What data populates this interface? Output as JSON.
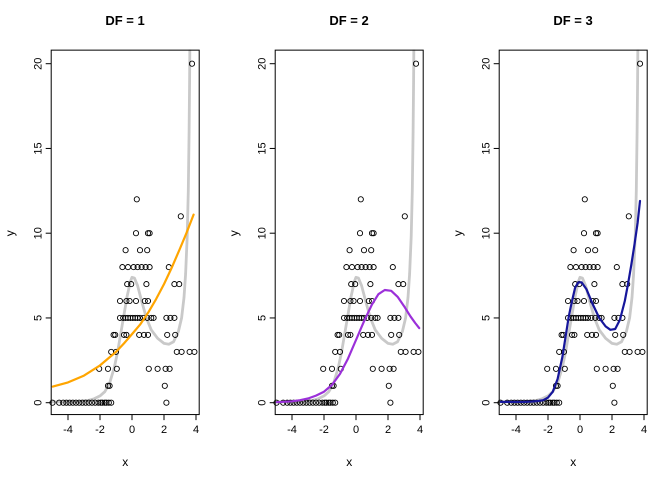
{
  "figure": {
    "background": "#ffffff",
    "panels": [
      {
        "title": "DF = 1"
      },
      {
        "title": "DF = 2"
      },
      {
        "title": "DF = 3"
      }
    ]
  },
  "chart_data": {
    "type": "scatter",
    "title": "",
    "xlabel": "x",
    "ylabel": "y",
    "xlim": [
      -5.05,
      4.2
    ],
    "ylim": [
      -0.7,
      20.8
    ],
    "x_ticks": [
      -4,
      -2,
      0,
      2,
      4
    ],
    "y_ticks": [
      0,
      5,
      10,
      15,
      20
    ],
    "grid": false,
    "point_color": "#000000",
    "true_curve_color": "#C9C9C9",
    "points": [
      [
        -4.97,
        0
      ],
      [
        -4.55,
        0
      ],
      [
        -4.3,
        0
      ],
      [
        -4.1,
        0
      ],
      [
        -3.9,
        0
      ],
      [
        -3.7,
        0
      ],
      [
        -3.5,
        0
      ],
      [
        -3.3,
        0
      ],
      [
        -3.1,
        0
      ],
      [
        -2.9,
        0
      ],
      [
        -2.7,
        0
      ],
      [
        -2.5,
        0
      ],
      [
        -2.3,
        0
      ],
      [
        -2.1,
        0
      ],
      [
        -1.95,
        0
      ],
      [
        -1.85,
        0
      ],
      [
        -1.7,
        0
      ],
      [
        -1.6,
        0
      ],
      [
        -1.45,
        0
      ],
      [
        -1.3,
        0
      ],
      [
        2.15,
        0
      ],
      [
        -1.5,
        1
      ],
      [
        -1.4,
        1
      ],
      [
        2.05,
        1
      ],
      [
        -2.05,
        2
      ],
      [
        -1.5,
        2
      ],
      [
        -0.95,
        2
      ],
      [
        1.05,
        2
      ],
      [
        1.6,
        2
      ],
      [
        2.1,
        2
      ],
      [
        2.35,
        2
      ],
      [
        -1.3,
        3
      ],
      [
        -1.0,
        3
      ],
      [
        2.8,
        3
      ],
      [
        3.1,
        3
      ],
      [
        3.6,
        3
      ],
      [
        3.9,
        3
      ],
      [
        -1.15,
        4
      ],
      [
        -1.05,
        4
      ],
      [
        -0.5,
        4
      ],
      [
        -0.35,
        4
      ],
      [
        0.45,
        4
      ],
      [
        0.75,
        4
      ],
      [
        1.0,
        4
      ],
      [
        2.2,
        4
      ],
      [
        2.7,
        4
      ],
      [
        -0.75,
        5
      ],
      [
        -0.55,
        5
      ],
      [
        -0.4,
        5
      ],
      [
        -0.25,
        5
      ],
      [
        -0.1,
        5
      ],
      [
        0.05,
        5
      ],
      [
        0.2,
        5
      ],
      [
        0.35,
        5
      ],
      [
        0.5,
        5
      ],
      [
        0.7,
        5
      ],
      [
        0.95,
        5
      ],
      [
        1.2,
        5
      ],
      [
        1.35,
        5
      ],
      [
        2.15,
        5
      ],
      [
        2.4,
        5
      ],
      [
        2.65,
        5
      ],
      [
        -0.75,
        6
      ],
      [
        -0.35,
        6
      ],
      [
        -0.15,
        6
      ],
      [
        0.25,
        6
      ],
      [
        0.8,
        6
      ],
      [
        1.0,
        6
      ],
      [
        -0.3,
        7
      ],
      [
        -0.05,
        7
      ],
      [
        0.9,
        7
      ],
      [
        2.65,
        7
      ],
      [
        2.95,
        7
      ],
      [
        -0.6,
        8
      ],
      [
        -0.25,
        8
      ],
      [
        0.1,
        8
      ],
      [
        0.35,
        8
      ],
      [
        0.6,
        8
      ],
      [
        0.85,
        8
      ],
      [
        1.1,
        8
      ],
      [
        2.3,
        8
      ],
      [
        -0.4,
        9
      ],
      [
        0.5,
        9
      ],
      [
        0.95,
        9
      ],
      [
        0.25,
        10
      ],
      [
        1.0,
        10
      ],
      [
        1.1,
        10
      ],
      [
        3.05,
        11
      ],
      [
        0.3,
        12
      ],
      [
        3.75,
        20
      ]
    ],
    "true_curve": [
      [
        -5.05,
        0.05
      ],
      [
        -4,
        0.05
      ],
      [
        -3.2,
        0.08
      ],
      [
        -2.8,
        0.12
      ],
      [
        -2.4,
        0.22
      ],
      [
        -2,
        0.4
      ],
      [
        -1.7,
        0.65
      ],
      [
        -1.4,
        1.15
      ],
      [
        -1.1,
        2.1
      ],
      [
        -0.9,
        3.0
      ],
      [
        -0.7,
        4.1
      ],
      [
        -0.5,
        5.2
      ],
      [
        -0.3,
        6.3
      ],
      [
        -0.1,
        7.15
      ],
      [
        0,
        7.4
      ],
      [
        0.15,
        7.35
      ],
      [
        0.35,
        6.9
      ],
      [
        0.6,
        6.0
      ],
      [
        0.9,
        5.0
      ],
      [
        1.2,
        4.3
      ],
      [
        1.6,
        3.8
      ],
      [
        2,
        3.5
      ],
      [
        2.3,
        3.45
      ],
      [
        2.6,
        3.6
      ],
      [
        2.9,
        4.2
      ],
      [
        3.1,
        5.0
      ],
      [
        3.25,
        6.2
      ],
      [
        3.35,
        7.6
      ],
      [
        3.45,
        9.8
      ],
      [
        3.52,
        12.5
      ],
      [
        3.57,
        16
      ],
      [
        3.6,
        19
      ],
      [
        3.62,
        21.4
      ]
    ],
    "fits": [
      {
        "df": 1,
        "color": "#FFA500",
        "curve": [
          [
            -4.95,
            0.95
          ],
          [
            -4,
            1.2
          ],
          [
            -3,
            1.6
          ],
          [
            -2,
            2.2
          ],
          [
            -1,
            3.0
          ],
          [
            -0.5,
            3.5
          ],
          [
            0,
            4.05
          ],
          [
            0.5,
            4.6
          ],
          [
            1,
            5.3
          ],
          [
            1.5,
            6.1
          ],
          [
            2,
            7.0
          ],
          [
            2.5,
            8.0
          ],
          [
            3,
            9.1
          ],
          [
            3.4,
            10.0
          ],
          [
            3.85,
            11.1
          ]
        ]
      },
      {
        "df": 2,
        "color": "#9B30D9",
        "curve": [
          [
            -4.95,
            0.03
          ],
          [
            -4,
            0.08
          ],
          [
            -3.5,
            0.15
          ],
          [
            -3,
            0.25
          ],
          [
            -2.5,
            0.42
          ],
          [
            -2,
            0.65
          ],
          [
            -1.5,
            1.05
          ],
          [
            -1,
            1.7
          ],
          [
            -0.5,
            2.6
          ],
          [
            0,
            3.7
          ],
          [
            0.5,
            4.8
          ],
          [
            1,
            5.8
          ],
          [
            1.4,
            6.4
          ],
          [
            1.8,
            6.65
          ],
          [
            2.2,
            6.6
          ],
          [
            2.6,
            6.25
          ],
          [
            3,
            5.7
          ],
          [
            3.4,
            5.1
          ],
          [
            3.7,
            4.7
          ],
          [
            3.95,
            4.4
          ]
        ]
      },
      {
        "df": 3,
        "color": "#16169B",
        "curve": [
          [
            -4.95,
            0.05
          ],
          [
            -4,
            0.05
          ],
          [
            -3.5,
            0.05
          ],
          [
            -3,
            0.07
          ],
          [
            -2.6,
            0.1
          ],
          [
            -2.3,
            0.15
          ],
          [
            -2,
            0.3
          ],
          [
            -1.7,
            0.65
          ],
          [
            -1.4,
            1.4
          ],
          [
            -1.1,
            2.7
          ],
          [
            -0.9,
            3.9
          ],
          [
            -0.7,
            5.1
          ],
          [
            -0.5,
            6.0
          ],
          [
            -0.3,
            6.8
          ],
          [
            -0.1,
            7.1
          ],
          [
            0.1,
            7.1
          ],
          [
            0.4,
            6.7
          ],
          [
            0.8,
            5.8
          ],
          [
            1.2,
            5.0
          ],
          [
            1.6,
            4.5
          ],
          [
            1.9,
            4.3
          ],
          [
            2.2,
            4.35
          ],
          [
            2.5,
            4.9
          ],
          [
            2.8,
            6.0
          ],
          [
            3.0,
            7.0
          ],
          [
            3.2,
            8.1
          ],
          [
            3.4,
            9.3
          ],
          [
            3.6,
            10.6
          ],
          [
            3.75,
            11.9
          ]
        ]
      }
    ]
  }
}
